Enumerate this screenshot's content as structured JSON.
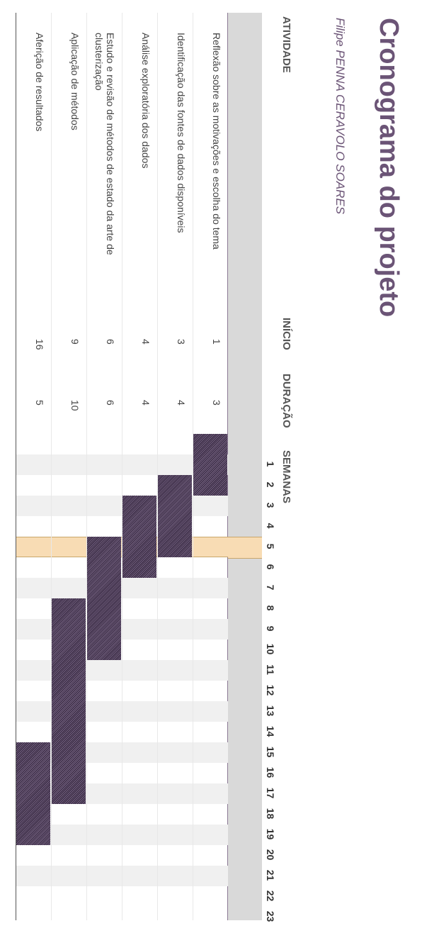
{
  "title": "Cronograma do projeto",
  "author": "Filipe PENNA CERAVOLO SOARES",
  "columns": {
    "activity": "ATIVIDADE",
    "start": "INÍCIO",
    "duration": "DURAÇÃO",
    "weeks": "SEMANAS"
  },
  "weeks": [
    "1",
    "2",
    "3",
    "4",
    "5",
    "6",
    "7",
    "8",
    "9",
    "10",
    "11",
    "12",
    "13",
    "14",
    "15",
    "16",
    "17",
    "18",
    "19",
    "20",
    "21",
    "22",
    "23"
  ],
  "current_week": 6,
  "colors": {
    "title": "#6b5476",
    "bar": "#4a3a55",
    "highlight": "#f8dcb4",
    "header_bg": "#d9d9d9"
  },
  "tasks": [
    {
      "name": "Reflexão sobre as motivações e escolha do tema",
      "start": "1",
      "duration": "3"
    },
    {
      "name": "Identificação das fontes de dados disponíveis",
      "start": "3",
      "duration": "4"
    },
    {
      "name": "Análise exploratória dos dados",
      "start": "4",
      "duration": "4"
    },
    {
      "name": "Estudo e revisão de métodos de estado da arte de clusterização",
      "start": "6",
      "duration": "6"
    },
    {
      "name": "Aplicação de métodos",
      "start": "9",
      "duration": "10"
    },
    {
      "name": "Aferição de resultados",
      "start": "16",
      "duration": "5"
    }
  ]
}
